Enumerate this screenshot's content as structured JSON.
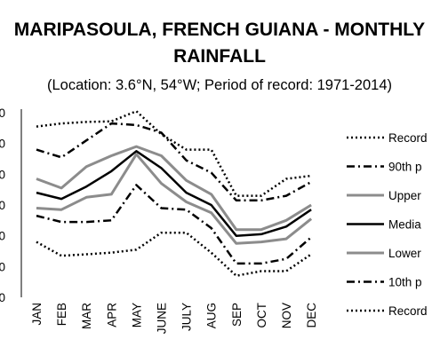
{
  "chart_data": {
    "type": "line",
    "title_lines": [
      "MARIPASOULA, FRENCH GUIANA - MONTHLY",
      "RAINFALL"
    ],
    "subtitle": "(Location: 3.6°N, 54°W; Period of record: 1971-2014)",
    "categories": [
      "JAN",
      "FEB",
      "MAR",
      "APR",
      "MAY",
      "JUNE",
      "JULY",
      "AUG",
      "SEP",
      "OCT",
      "NOV",
      "DEC"
    ],
    "y_tick_labels": [
      "0",
      "0",
      "0",
      "0",
      "0",
      "0",
      "0"
    ],
    "ylim": [
      0,
      6
    ],
    "grid": false,
    "legend_position": "right",
    "series": [
      {
        "name": "Record",
        "style": "dotted",
        "color": "#000000",
        "values": [
          5.55,
          5.65,
          5.7,
          5.72,
          6.05,
          5.3,
          4.8,
          4.8,
          3.3,
          3.3,
          3.85,
          3.95
        ]
      },
      {
        "name": "90th p",
        "style": "dashdot",
        "color": "#000000",
        "values": [
          4.8,
          4.55,
          5.1,
          5.65,
          5.6,
          5.35,
          4.45,
          4.05,
          3.15,
          3.15,
          3.3,
          3.75
        ]
      },
      {
        "name": "Upper",
        "style": "solid",
        "color": "#8c8c8c",
        "values": [
          3.85,
          3.55,
          4.25,
          4.6,
          4.9,
          4.6,
          3.8,
          3.35,
          2.2,
          2.2,
          2.5,
          3.0
        ]
      },
      {
        "name": "Media",
        "style": "solid",
        "color": "#000000",
        "values": [
          3.4,
          3.2,
          3.6,
          4.1,
          4.75,
          4.2,
          3.4,
          3.0,
          2.0,
          2.05,
          2.3,
          2.85
        ]
      },
      {
        "name": "Lower",
        "style": "solid",
        "color": "#8c8c8c",
        "values": [
          2.9,
          2.85,
          3.25,
          3.35,
          4.65,
          3.7,
          3.1,
          2.75,
          1.75,
          1.8,
          1.9,
          2.55
        ]
      },
      {
        "name": "10th p",
        "style": "dashdot",
        "color": "#000000",
        "values": [
          2.65,
          2.45,
          2.45,
          2.5,
          3.65,
          2.9,
          2.85,
          2.25,
          1.1,
          1.1,
          1.25,
          1.95
        ]
      },
      {
        "name": "Record",
        "style": "dotted",
        "color": "#000000",
        "values": [
          1.8,
          1.35,
          1.4,
          1.45,
          1.55,
          2.1,
          2.1,
          1.45,
          0.7,
          0.85,
          0.85,
          1.4
        ]
      }
    ]
  }
}
